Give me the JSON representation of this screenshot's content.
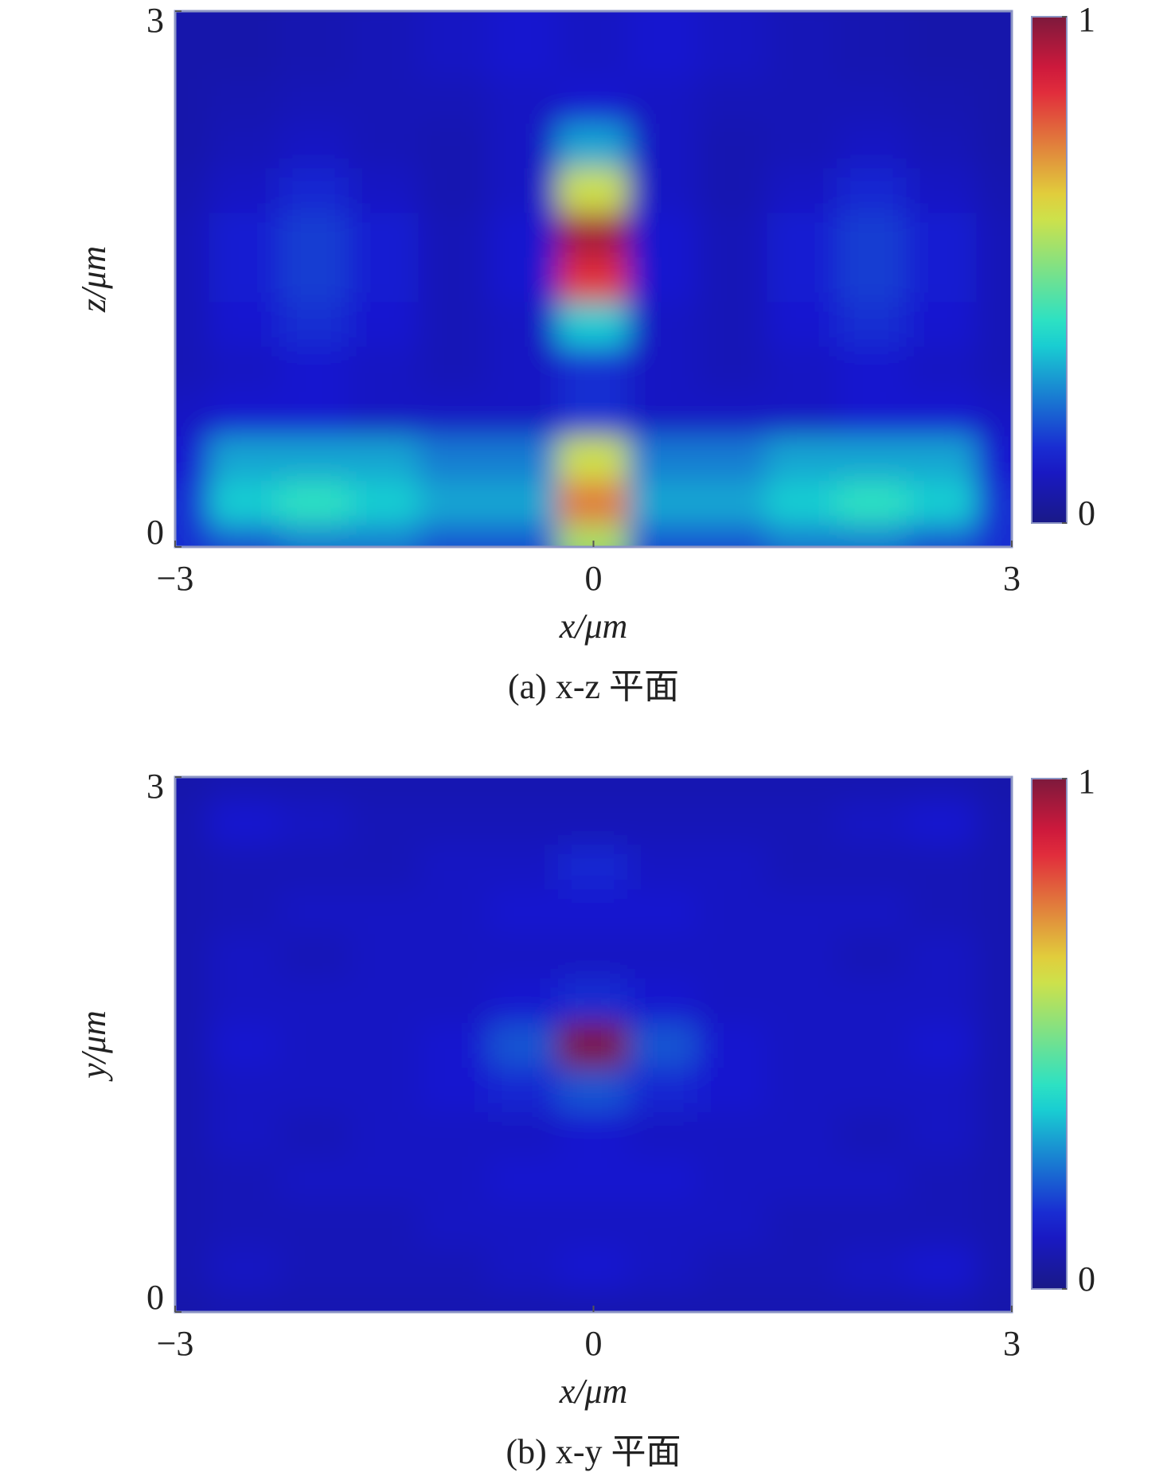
{
  "chart_data": [
    {
      "type": "heatmap",
      "caption": "(a) x-z 平面",
      "xlabel": "x/μm",
      "ylabel": "z/μm",
      "colormap": "jet",
      "xlim": [
        -3,
        3
      ],
      "ylim": [
        0,
        3
      ],
      "xticks": [
        {
          "value": -3,
          "label": "−3"
        },
        0,
        3
      ],
      "yticks": [
        0,
        3
      ],
      "colorbar": {
        "lim": [
          0,
          1
        ],
        "ticks": [
          0,
          1
        ]
      },
      "x": [
        -3,
        -2.5,
        -2,
        -1.5,
        -1,
        -0.5,
        0,
        0.5,
        1,
        1.5,
        2,
        2.5,
        3
      ],
      "y": [
        0,
        0.25,
        0.5,
        0.75,
        1,
        1.25,
        1.5,
        1.75,
        2,
        2.25,
        2.5,
        2.75,
        3
      ],
      "z": [
        [
          0.15,
          0.2,
          0.25,
          0.25,
          0.2,
          0.2,
          0.55,
          0.2,
          0.2,
          0.25,
          0.25,
          0.2,
          0.15
        ],
        [
          0.15,
          0.35,
          0.4,
          0.35,
          0.3,
          0.3,
          0.75,
          0.3,
          0.3,
          0.35,
          0.4,
          0.35,
          0.15
        ],
        [
          0.12,
          0.3,
          0.3,
          0.3,
          0.25,
          0.25,
          0.6,
          0.25,
          0.25,
          0.3,
          0.3,
          0.3,
          0.12
        ],
        [
          0.1,
          0.12,
          0.12,
          0.1,
          0.1,
          0.1,
          0.15,
          0.1,
          0.1,
          0.1,
          0.12,
          0.12,
          0.1
        ],
        [
          0.08,
          0.1,
          0.12,
          0.1,
          0.08,
          0.1,
          0.15,
          0.1,
          0.08,
          0.1,
          0.12,
          0.1,
          0.08
        ],
        [
          0.08,
          0.12,
          0.15,
          0.12,
          0.08,
          0.1,
          0.35,
          0.1,
          0.08,
          0.12,
          0.15,
          0.12,
          0.08
        ],
        [
          0.08,
          0.13,
          0.17,
          0.13,
          0.08,
          0.12,
          0.85,
          0.12,
          0.08,
          0.13,
          0.17,
          0.13,
          0.08
        ],
        [
          0.08,
          0.13,
          0.17,
          0.13,
          0.08,
          0.12,
          0.95,
          0.12,
          0.08,
          0.13,
          0.17,
          0.13,
          0.08
        ],
        [
          0.07,
          0.1,
          0.14,
          0.1,
          0.07,
          0.1,
          0.6,
          0.1,
          0.07,
          0.1,
          0.14,
          0.1,
          0.07
        ],
        [
          0.06,
          0.08,
          0.1,
          0.08,
          0.07,
          0.1,
          0.3,
          0.1,
          0.07,
          0.08,
          0.1,
          0.08,
          0.06
        ],
        [
          0.06,
          0.07,
          0.08,
          0.08,
          0.08,
          0.1,
          0.12,
          0.1,
          0.08,
          0.08,
          0.08,
          0.07,
          0.06
        ],
        [
          0.06,
          0.06,
          0.07,
          0.08,
          0.1,
          0.12,
          0.1,
          0.12,
          0.1,
          0.08,
          0.07,
          0.06,
          0.06
        ],
        [
          0.06,
          0.06,
          0.07,
          0.08,
          0.1,
          0.12,
          0.1,
          0.12,
          0.1,
          0.08,
          0.07,
          0.06,
          0.06
        ]
      ]
    },
    {
      "type": "heatmap",
      "caption": "(b) x-y 平面",
      "xlabel": "x/μm",
      "ylabel": "y/μm",
      "colormap": "jet",
      "xlim": [
        -3,
        3
      ],
      "ylim": [
        0,
        3
      ],
      "xticks": [
        {
          "value": -3,
          "label": "−3"
        },
        0,
        3
      ],
      "yticks": [
        0,
        3
      ],
      "colorbar": {
        "lim": [
          0,
          1
        ],
        "ticks": [
          0,
          1
        ]
      },
      "x": [
        -3,
        -2.5,
        -2,
        -1.5,
        -1,
        -0.5,
        0,
        0.5,
        1,
        1.5,
        2,
        2.5,
        3
      ],
      "y": [
        0,
        0.25,
        0.5,
        0.75,
        1,
        1.25,
        1.5,
        1.75,
        2,
        2.25,
        2.5,
        2.75,
        3
      ],
      "z": [
        [
          0.06,
          0.07,
          0.07,
          0.07,
          0.07,
          0.07,
          0.07,
          0.07,
          0.07,
          0.07,
          0.07,
          0.07,
          0.06
        ],
        [
          0.07,
          0.1,
          0.08,
          0.08,
          0.08,
          0.1,
          0.12,
          0.1,
          0.08,
          0.08,
          0.1,
          0.12,
          0.07
        ],
        [
          0.07,
          0.08,
          0.08,
          0.08,
          0.1,
          0.1,
          0.1,
          0.1,
          0.1,
          0.08,
          0.08,
          0.08,
          0.07
        ],
        [
          0.07,
          0.08,
          0.1,
          0.1,
          0.1,
          0.12,
          0.12,
          0.12,
          0.1,
          0.1,
          0.1,
          0.08,
          0.07
        ],
        [
          0.07,
          0.1,
          0.08,
          0.1,
          0.1,
          0.1,
          0.12,
          0.1,
          0.1,
          0.1,
          0.08,
          0.1,
          0.07
        ],
        [
          0.07,
          0.1,
          0.1,
          0.1,
          0.12,
          0.14,
          0.2,
          0.14,
          0.12,
          0.1,
          0.1,
          0.1,
          0.07
        ],
        [
          0.07,
          0.12,
          0.1,
          0.1,
          0.12,
          0.2,
          1,
          0.2,
          0.12,
          0.1,
          0.1,
          0.12,
          0.07
        ],
        [
          0.07,
          0.1,
          0.1,
          0.1,
          0.1,
          0.12,
          0.15,
          0.12,
          0.1,
          0.1,
          0.1,
          0.1,
          0.07
        ],
        [
          0.07,
          0.1,
          0.08,
          0.1,
          0.1,
          0.1,
          0.1,
          0.1,
          0.1,
          0.1,
          0.08,
          0.1,
          0.07
        ],
        [
          0.07,
          0.08,
          0.1,
          0.1,
          0.1,
          0.12,
          0.12,
          0.12,
          0.1,
          0.1,
          0.1,
          0.08,
          0.07
        ],
        [
          0.07,
          0.08,
          0.08,
          0.08,
          0.1,
          0.1,
          0.14,
          0.1,
          0.1,
          0.08,
          0.08,
          0.08,
          0.07
        ],
        [
          0.07,
          0.12,
          0.1,
          0.08,
          0.08,
          0.08,
          0.08,
          0.08,
          0.08,
          0.08,
          0.1,
          0.12,
          0.07
        ],
        [
          0.06,
          0.07,
          0.07,
          0.07,
          0.07,
          0.07,
          0.07,
          0.07,
          0.07,
          0.07,
          0.07,
          0.07,
          0.06
        ]
      ]
    }
  ]
}
